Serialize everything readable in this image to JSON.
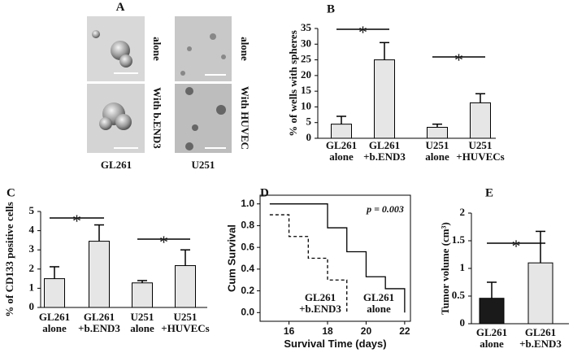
{
  "panel_a": {
    "label": "A",
    "columns": [
      "GL261",
      "U251"
    ],
    "row_labels": [
      [
        "alone",
        "With b.END3"
      ],
      [
        "alone",
        "With HUVEC"
      ]
    ]
  },
  "chart_data": [
    {
      "type": "bar",
      "panel_label": "B",
      "y_label": "% of wells with spheres",
      "categories": [
        [
          "GL261",
          "alone"
        ],
        [
          "GL261",
          "+b.END3"
        ],
        [
          "U251",
          "alone"
        ],
        [
          "U251",
          "+HUVECs"
        ]
      ],
      "values": [
        4.5,
        25,
        3.5,
        11.3
      ],
      "errors": [
        2.5,
        5.5,
        1,
        2.9
      ],
      "colors": [
        "#e6e6e6",
        "#e6e6e6",
        "#e6e6e6",
        "#e6e6e6"
      ],
      "ylim": [
        0,
        35
      ],
      "yticks": [
        0,
        5,
        10,
        15,
        20,
        25,
        30,
        35
      ],
      "significance": [
        {
          "pair": [
            0,
            1
          ],
          "label": "*"
        },
        {
          "pair": [
            2,
            3
          ],
          "label": "*"
        }
      ]
    },
    {
      "type": "bar",
      "panel_label": "C",
      "y_label": "% of CD133 positive cells",
      "categories": [
        [
          "GL261",
          "alone"
        ],
        [
          "GL261",
          "+b.END3"
        ],
        [
          "U251",
          "alone"
        ],
        [
          "U251",
          "+HUVECs"
        ]
      ],
      "values": [
        1.5,
        3.45,
        1.28,
        2.18
      ],
      "errors": [
        0.62,
        0.85,
        0.12,
        0.82
      ],
      "colors": [
        "#e6e6e6",
        "#e6e6e6",
        "#e6e6e6",
        "#e6e6e6"
      ],
      "ylim": [
        0,
        5
      ],
      "yticks": [
        0,
        1,
        2,
        3,
        4,
        5
      ],
      "significance": [
        {
          "pair": [
            0,
            1
          ],
          "label": "*"
        },
        {
          "pair": [
            2,
            3
          ],
          "label": "*"
        }
      ]
    },
    {
      "type": "step",
      "panel_label": "D",
      "x_label": "Survival Time (days)",
      "y_label": "Cum Survival",
      "annotation": "p = 0.003",
      "series": [
        {
          "name": [
            "GL261",
            "alone"
          ],
          "color": "#000000",
          "dash": false,
          "x": [
            15,
            18,
            19,
            20,
            21,
            22
          ],
          "values": [
            1.0,
            0.78,
            0.56,
            0.33,
            0.22,
            0.0
          ]
        },
        {
          "name": [
            "GL261",
            "+b.END3"
          ],
          "color": "#000000",
          "dash": true,
          "x": [
            15,
            16,
            17,
            18,
            19
          ],
          "values": [
            0.9,
            0.7,
            0.5,
            0.3,
            0.0
          ]
        }
      ],
      "xlim": [
        14.5,
        22.3
      ],
      "xticks": [
        16,
        18,
        20,
        22
      ],
      "ylim": [
        -0.08,
        1.08
      ],
      "yticks": [
        {
          "value": 0,
          "label": "0.0"
        },
        {
          "value": 0.2,
          "label": "0.2"
        },
        {
          "value": 0.4,
          "label": "0.4"
        },
        {
          "value": 0.6,
          "label": "0.6"
        },
        {
          "value": 0.8,
          "label": "0.8"
        },
        {
          "value": 1,
          "label": "1.0"
        }
      ]
    },
    {
      "type": "bar",
      "panel_label": "E",
      "y_label": "Tumor volume (cm³)",
      "categories": [
        [
          "GL261",
          "alone"
        ],
        [
          "GL261",
          "+b.END3"
        ]
      ],
      "values": [
        0.46,
        1.1
      ],
      "errors": [
        0.29,
        0.57
      ],
      "colors": [
        "#1a1a1a",
        "#e6e6e6"
      ],
      "ylim": [
        0,
        2
      ],
      "yticks": [
        0,
        0.5,
        1,
        1.5,
        2
      ],
      "significance": [
        {
          "pair": [
            0,
            1
          ],
          "label": "*"
        }
      ]
    }
  ]
}
